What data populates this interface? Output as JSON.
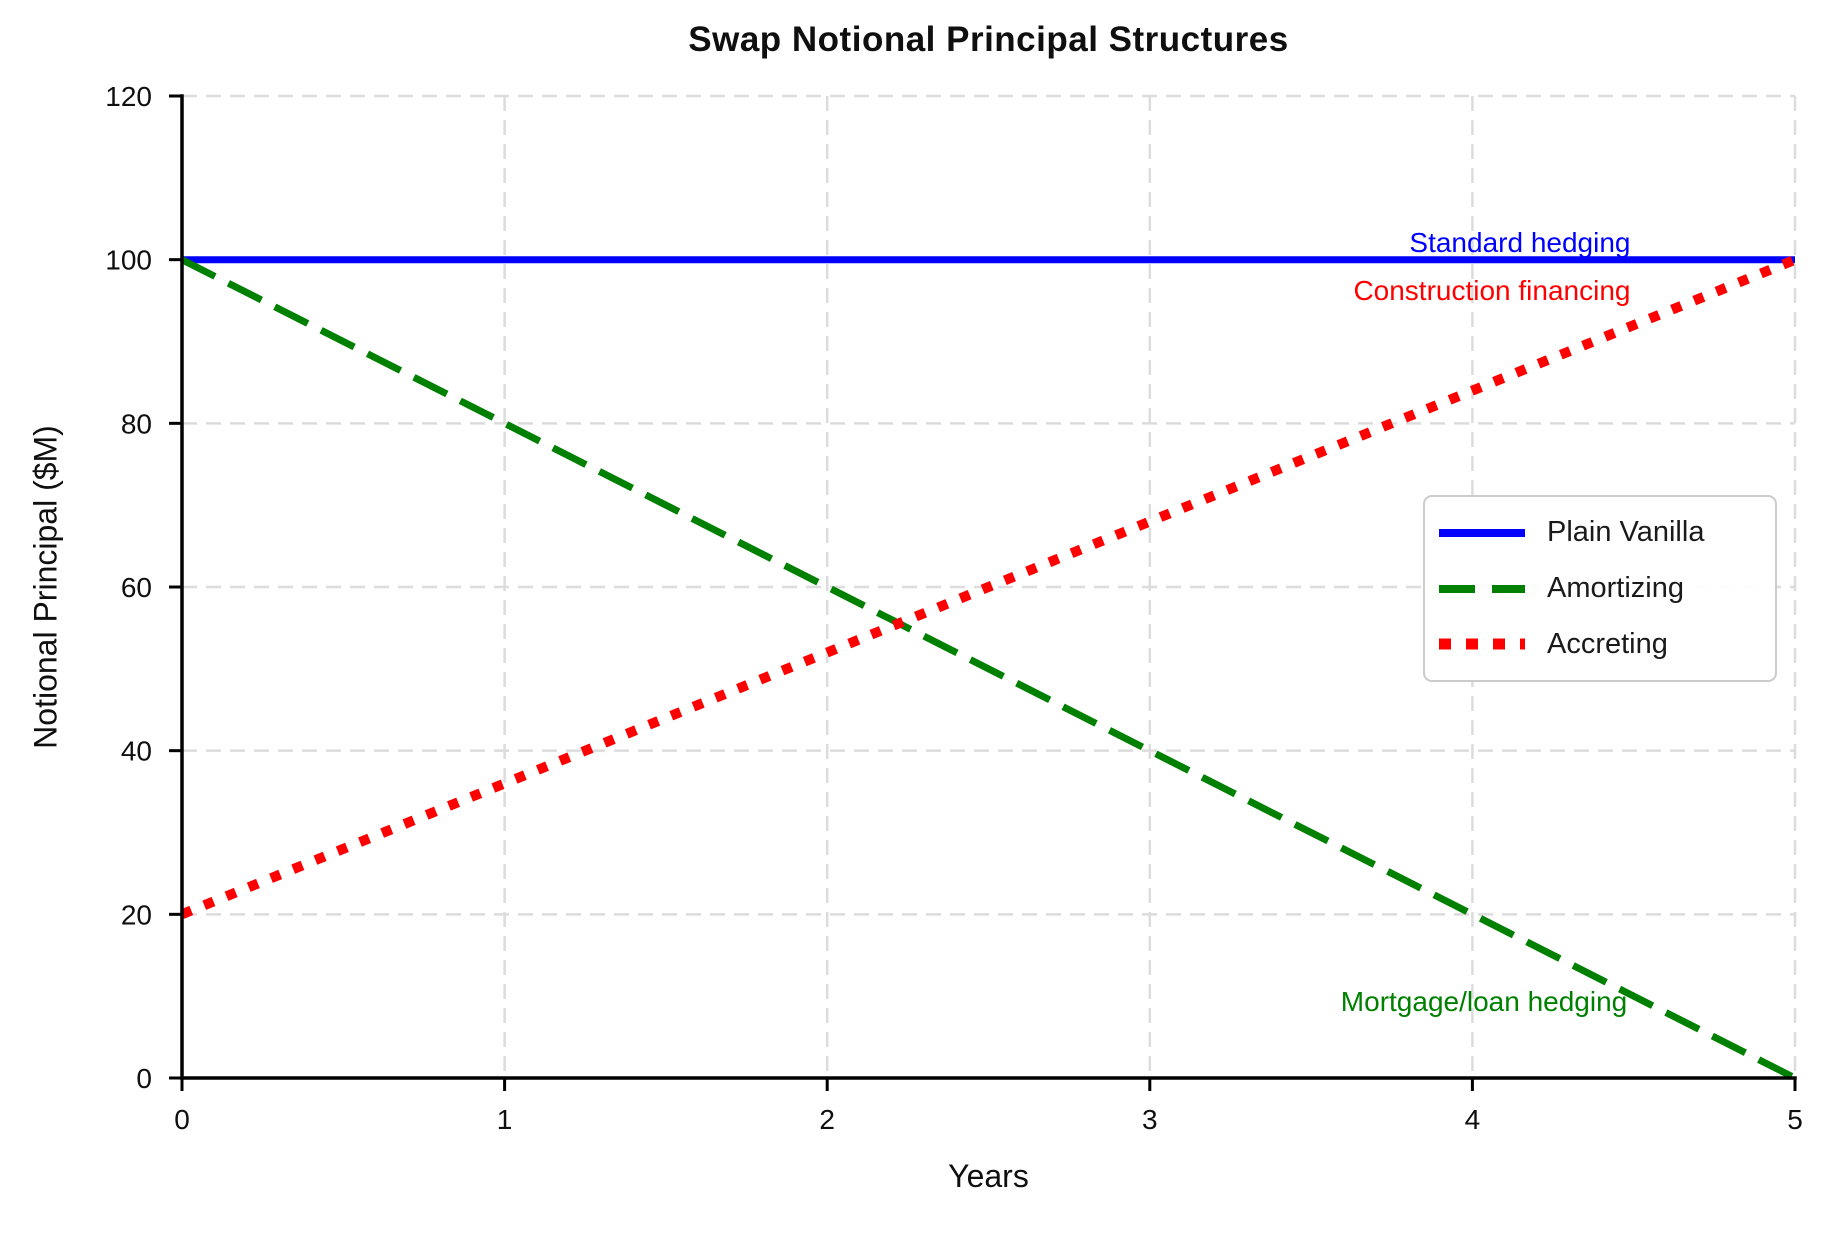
{
  "chart_data": {
    "type": "line",
    "title": "Swap Notional Principal Structures",
    "xlabel": "Years",
    "ylabel": "Notional Principal ($M)",
    "xlim": [
      0,
      5
    ],
    "ylim": [
      0,
      120
    ],
    "xticks": [
      0,
      1,
      2,
      3,
      4,
      5
    ],
    "yticks": [
      0,
      20,
      40,
      60,
      80,
      100,
      120
    ],
    "grid": true,
    "x": [
      0,
      1,
      2,
      3,
      4,
      5
    ],
    "series": [
      {
        "name": "Plain Vanilla",
        "color": "#0000ff",
        "style": "solid",
        "values": [
          100,
          100,
          100,
          100,
          100,
          100
        ]
      },
      {
        "name": "Amortizing",
        "color": "#008000",
        "style": "dashed",
        "values": [
          100,
          80,
          60,
          40,
          20,
          0
        ]
      },
      {
        "name": "Accreting",
        "color": "#ff0000",
        "style": "dotted",
        "values": [
          20,
          36,
          52,
          68,
          84,
          100
        ]
      }
    ],
    "legend": {
      "position": "center-right",
      "items": [
        "Plain Vanilla",
        "Amortizing",
        "Accreting"
      ]
    },
    "annotations": [
      {
        "text": "Standard hedging",
        "color": "#0000ff",
        "x": 4.49,
        "y": 100,
        "dy": -8
      },
      {
        "text": "Construction financing",
        "color": "#ff0000",
        "x": 4.49,
        "y": 100,
        "dy": 40
      },
      {
        "text": "Mortgage/loan hedging",
        "color": "#008000",
        "x": 4.48,
        "y": 7,
        "dy": -10
      }
    ]
  }
}
